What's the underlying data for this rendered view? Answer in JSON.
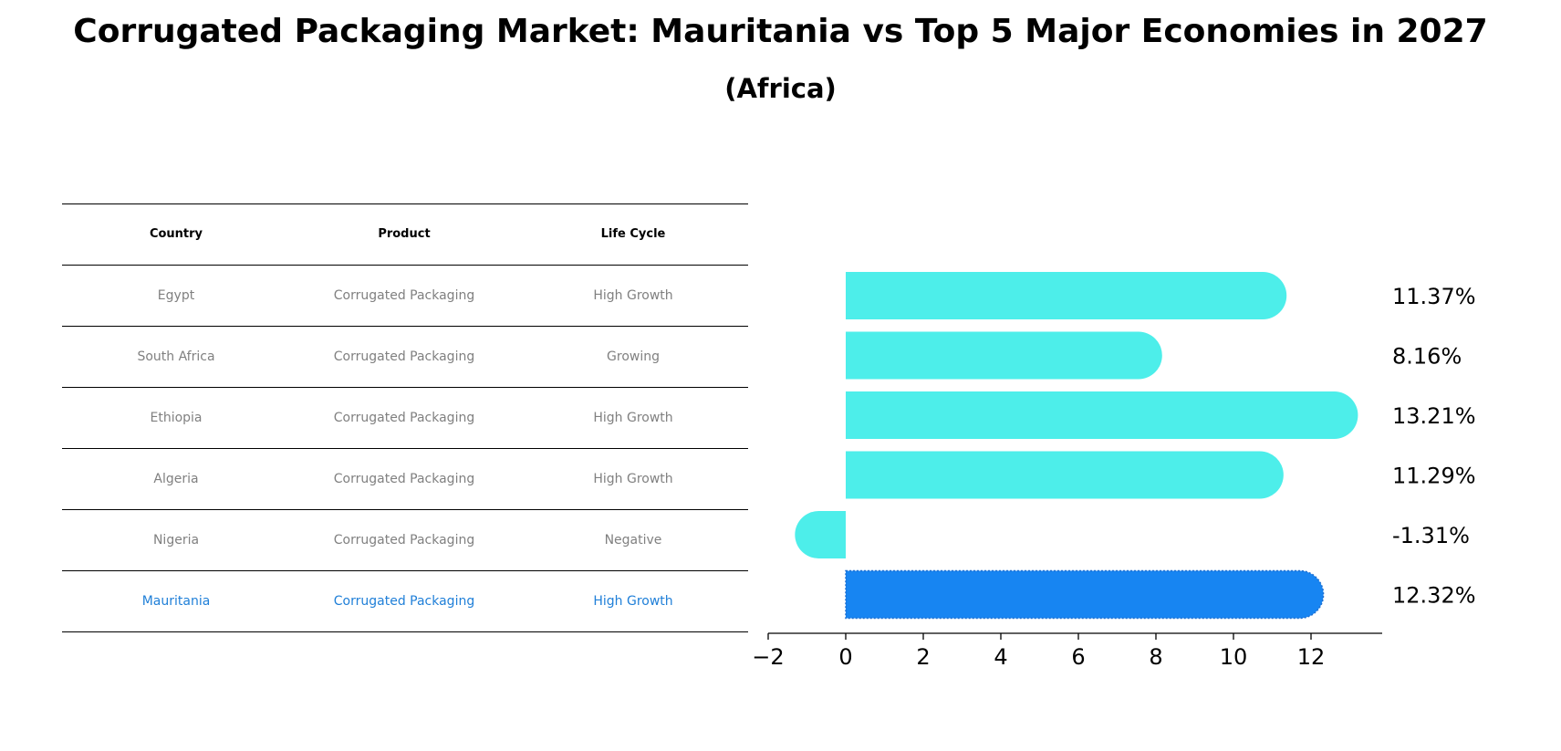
{
  "title": "Corrugated Packaging Market: Mauritania vs Top 5 Major Economies in 2027",
  "subtitle": "(Africa)",
  "table": {
    "headers": [
      "Country",
      "Product",
      "Life Cycle"
    ],
    "rows": [
      {
        "country": "Egypt",
        "product": "Corrugated Packaging",
        "life_cycle": "High Growth",
        "highlight": false
      },
      {
        "country": "South Africa",
        "product": "Corrugated Packaging",
        "life_cycle": "Growing",
        "highlight": false
      },
      {
        "country": "Ethiopia",
        "product": "Corrugated Packaging",
        "life_cycle": "High Growth",
        "highlight": false
      },
      {
        "country": "Algeria",
        "product": "Corrugated Packaging",
        "life_cycle": "High Growth",
        "highlight": false
      },
      {
        "country": "Nigeria",
        "product": "Corrugated Packaging",
        "life_cycle": "Negative",
        "highlight": false
      },
      {
        "country": "Mauritania",
        "product": "Corrugated Packaging",
        "life_cycle": "High Growth",
        "highlight": true
      }
    ]
  },
  "colors": {
    "bar": "#4deeea",
    "highlight_bar": "#1785f2",
    "highlight_text": "#1f7fd8",
    "muted_text": "#808080"
  },
  "chart_data": {
    "type": "bar",
    "orientation": "horizontal",
    "categories": [
      "Egypt",
      "South Africa",
      "Ethiopia",
      "Algeria",
      "Nigeria",
      "Mauritania"
    ],
    "values": [
      11.37,
      8.16,
      13.21,
      11.29,
      -1.31,
      12.32
    ],
    "value_labels": [
      "11.37%",
      "8.16%",
      "13.21%",
      "11.29%",
      "-1.31%",
      "12.32%"
    ],
    "highlight_index": 5,
    "xlim": [
      -2,
      14
    ],
    "xticks": [
      -2,
      0,
      2,
      4,
      6,
      8,
      10,
      12
    ],
    "xtick_labels": [
      "−2",
      "0",
      "2",
      "4",
      "6",
      "8",
      "10",
      "12"
    ],
    "grid": false
  }
}
